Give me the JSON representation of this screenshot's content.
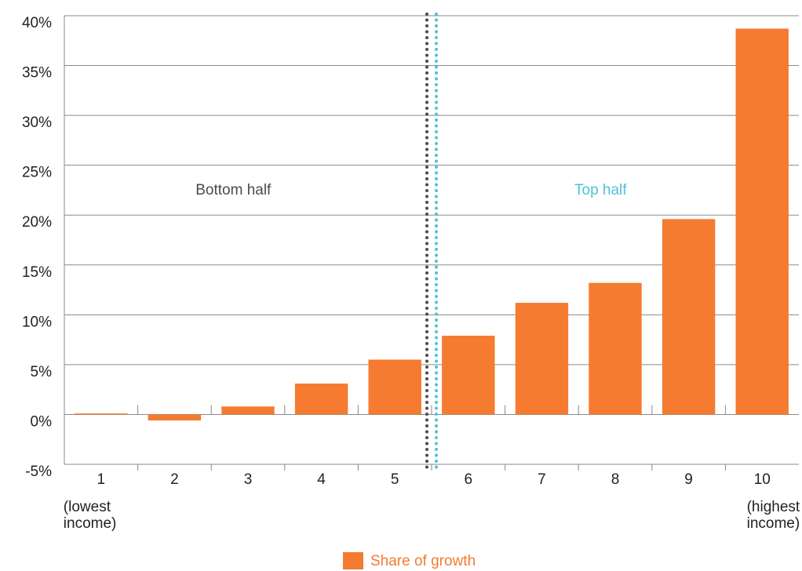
{
  "chart_data": {
    "type": "bar",
    "categories": [
      "1",
      "2",
      "3",
      "4",
      "5",
      "6",
      "7",
      "8",
      "9",
      "10"
    ],
    "series": [
      {
        "name": "Share of growth",
        "color": "#f47b30",
        "values": [
          0.1,
          -0.6,
          0.8,
          3.1,
          5.5,
          7.9,
          11.2,
          13.2,
          19.6,
          38.7
        ]
      }
    ],
    "category_notes": [
      {
        "index": 0,
        "lines": [
          "(lowest",
          "income)"
        ]
      },
      {
        "index": 9,
        "lines": [
          "(highest",
          "income)"
        ]
      }
    ],
    "halves": [
      {
        "label": "Bottom half",
        "color": "#4a4a4a"
      },
      {
        "label": "Top half",
        "color": "#4ec3d6"
      }
    ],
    "ylim": [
      -5,
      40
    ],
    "yticks": [
      {
        "value": -5,
        "label": "-5%"
      },
      {
        "value": 0,
        "label": "0%"
      },
      {
        "value": 5,
        "label": "5%"
      },
      {
        "value": 10,
        "label": "10%"
      },
      {
        "value": 15,
        "label": "15%"
      },
      {
        "value": 20,
        "label": "20%"
      },
      {
        "value": 25,
        "label": "25%"
      },
      {
        "value": 30,
        "label": "30%"
      },
      {
        "value": 35,
        "label": "35%"
      },
      {
        "value": 40,
        "label": "40%"
      }
    ],
    "grid": true
  }
}
